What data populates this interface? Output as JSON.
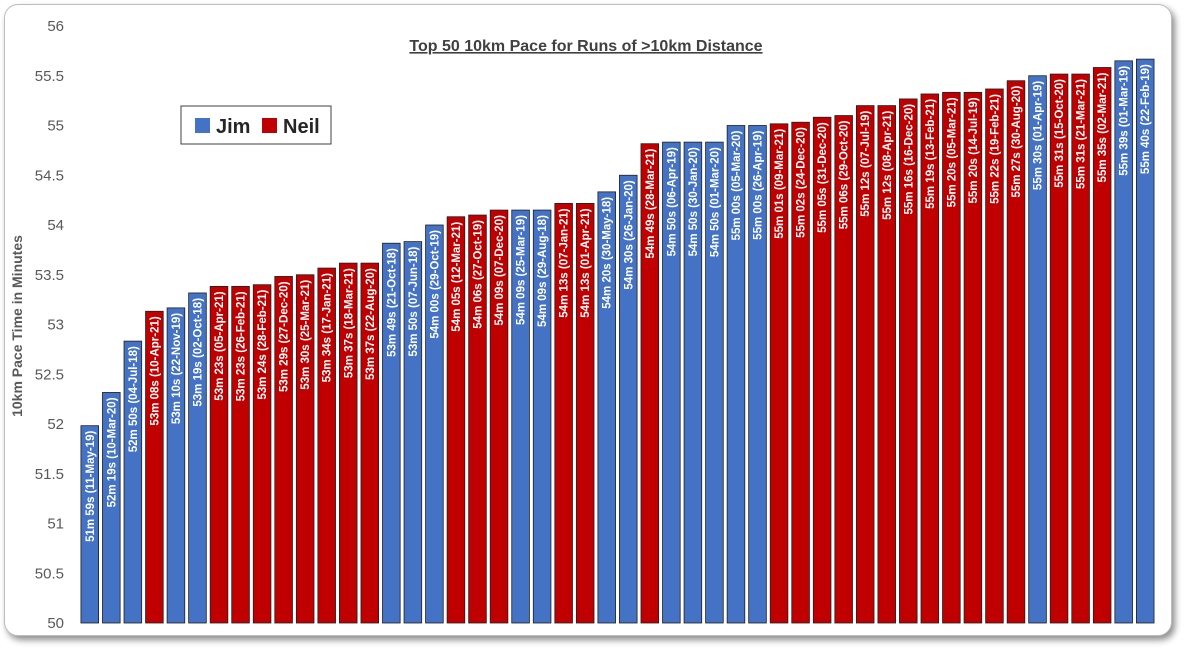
{
  "chart_data": {
    "type": "bar",
    "title": "Top 50 10km Pace for Runs of >10km Distance",
    "ylabel": "10km Pace Time in Minutes",
    "xlabel": "",
    "ylim": [
      50,
      56
    ],
    "yticks": [
      "50",
      "50.5",
      "51",
      "51.5",
      "52",
      "52.5",
      "53",
      "53.5",
      "54",
      "54.5",
      "55",
      "55.5",
      "56"
    ],
    "grid": false,
    "legend_position": "top-left",
    "series": [
      {
        "name": "Jim",
        "color": "#4472c4"
      },
      {
        "name": "Neil",
        "color": "#c00000"
      }
    ],
    "bars": [
      {
        "label": "51m 59s (11-May-19)",
        "value": 51.983,
        "runner": "Jim"
      },
      {
        "label": "52m 19s (10-Mar-20)",
        "value": 52.317,
        "runner": "Jim"
      },
      {
        "label": "52m 50s (04-Jul-18)",
        "value": 52.833,
        "runner": "Jim"
      },
      {
        "label": "53m 08s (10-Apr-21)",
        "value": 53.133,
        "runner": "Neil"
      },
      {
        "label": "53m 10s (22-Nov-19)",
        "value": 53.167,
        "runner": "Jim"
      },
      {
        "label": "53m 19s (02-Oct-18)",
        "value": 53.317,
        "runner": "Jim"
      },
      {
        "label": "53m 23s (05-Apr-21)",
        "value": 53.383,
        "runner": "Neil"
      },
      {
        "label": "53m 23s (26-Feb-21)",
        "value": 53.383,
        "runner": "Neil"
      },
      {
        "label": "53m 24s (28-Feb-21)",
        "value": 53.4,
        "runner": "Neil"
      },
      {
        "label": "53m 29s (27-Dec-20)",
        "value": 53.483,
        "runner": "Neil"
      },
      {
        "label": "53m 30s (25-Mar-21)",
        "value": 53.5,
        "runner": "Neil"
      },
      {
        "label": "53m 34s (17-Jan-21)",
        "value": 53.567,
        "runner": "Neil"
      },
      {
        "label": "53m 37s (18-Mar-21)",
        "value": 53.617,
        "runner": "Neil"
      },
      {
        "label": "53m 37s (22-Aug-20)",
        "value": 53.617,
        "runner": "Neil"
      },
      {
        "label": "53m 49s (21-Oct-18)",
        "value": 53.817,
        "runner": "Jim"
      },
      {
        "label": "53m 50s (07-Jun-18)",
        "value": 53.833,
        "runner": "Jim"
      },
      {
        "label": "54m 00s (29-Oct-19)",
        "value": 54.0,
        "runner": "Jim"
      },
      {
        "label": "54m 05s (12-Mar-21)",
        "value": 54.083,
        "runner": "Neil"
      },
      {
        "label": "54m 06s (27-Oct-19)",
        "value": 54.1,
        "runner": "Neil"
      },
      {
        "label": "54m 09s (07-Dec-20)",
        "value": 54.15,
        "runner": "Neil"
      },
      {
        "label": "54m 09s (25-Mar-19)",
        "value": 54.15,
        "runner": "Jim"
      },
      {
        "label": "54m 09s (29-Aug-18)",
        "value": 54.15,
        "runner": "Jim"
      },
      {
        "label": "54m 13s (07-Jan-21)",
        "value": 54.217,
        "runner": "Neil"
      },
      {
        "label": "54m 13s (01-Apr-21)",
        "value": 54.217,
        "runner": "Neil"
      },
      {
        "label": "54m 20s (30-May-18)",
        "value": 54.333,
        "runner": "Jim"
      },
      {
        "label": "54m 30s (26-Jan-20)",
        "value": 54.5,
        "runner": "Jim"
      },
      {
        "label": "54m 49s (28-Mar-21)",
        "value": 54.817,
        "runner": "Neil"
      },
      {
        "label": "54m 50s (06-Apr-19)",
        "value": 54.833,
        "runner": "Jim"
      },
      {
        "label": "54m 50s (30-Jan-20)",
        "value": 54.833,
        "runner": "Jim"
      },
      {
        "label": "54m 50s (01-Mar-20)",
        "value": 54.833,
        "runner": "Jim"
      },
      {
        "label": "55m 00s (05-Mar-20)",
        "value": 55.0,
        "runner": "Jim"
      },
      {
        "label": "55m 00s (26-Apr-19)",
        "value": 55.0,
        "runner": "Jim"
      },
      {
        "label": "55m 01s (09-Mar-21)",
        "value": 55.017,
        "runner": "Neil"
      },
      {
        "label": "55m 02s (24-Dec-20)",
        "value": 55.033,
        "runner": "Neil"
      },
      {
        "label": "55m 05s (31-Dec-20)",
        "value": 55.083,
        "runner": "Neil"
      },
      {
        "label": "55m 06s (29-Oct-20)",
        "value": 55.1,
        "runner": "Neil"
      },
      {
        "label": "55m 12s (07-Jul-19)",
        "value": 55.2,
        "runner": "Neil"
      },
      {
        "label": "55m 12s (08-Apr-21)",
        "value": 55.2,
        "runner": "Neil"
      },
      {
        "label": "55m 16s (16-Dec-20)",
        "value": 55.267,
        "runner": "Neil"
      },
      {
        "label": "55m 19s (13-Feb-21)",
        "value": 55.317,
        "runner": "Neil"
      },
      {
        "label": "55m 20s (05-Mar-21)",
        "value": 55.333,
        "runner": "Neil"
      },
      {
        "label": "55m 20s (14-Jul-19)",
        "value": 55.333,
        "runner": "Neil"
      },
      {
        "label": "55m 22s (19-Feb-21)",
        "value": 55.367,
        "runner": "Neil"
      },
      {
        "label": "55m 27s (30-Aug-20)",
        "value": 55.45,
        "runner": "Neil"
      },
      {
        "label": "55m 30s (01-Apr-19)",
        "value": 55.5,
        "runner": "Jim"
      },
      {
        "label": "55m 31s (15-Oct-20)",
        "value": 55.517,
        "runner": "Neil"
      },
      {
        "label": "55m 31s (21-Mar-21)",
        "value": 55.517,
        "runner": "Neil"
      },
      {
        "label": "55m 35s (02-Mar-21)",
        "value": 55.583,
        "runner": "Neil"
      },
      {
        "label": "55m 39s (01-Mar-19)",
        "value": 55.65,
        "runner": "Jim"
      },
      {
        "label": "55m 40s (22-Feb-19)",
        "value": 55.667,
        "runner": "Jim"
      }
    ]
  }
}
